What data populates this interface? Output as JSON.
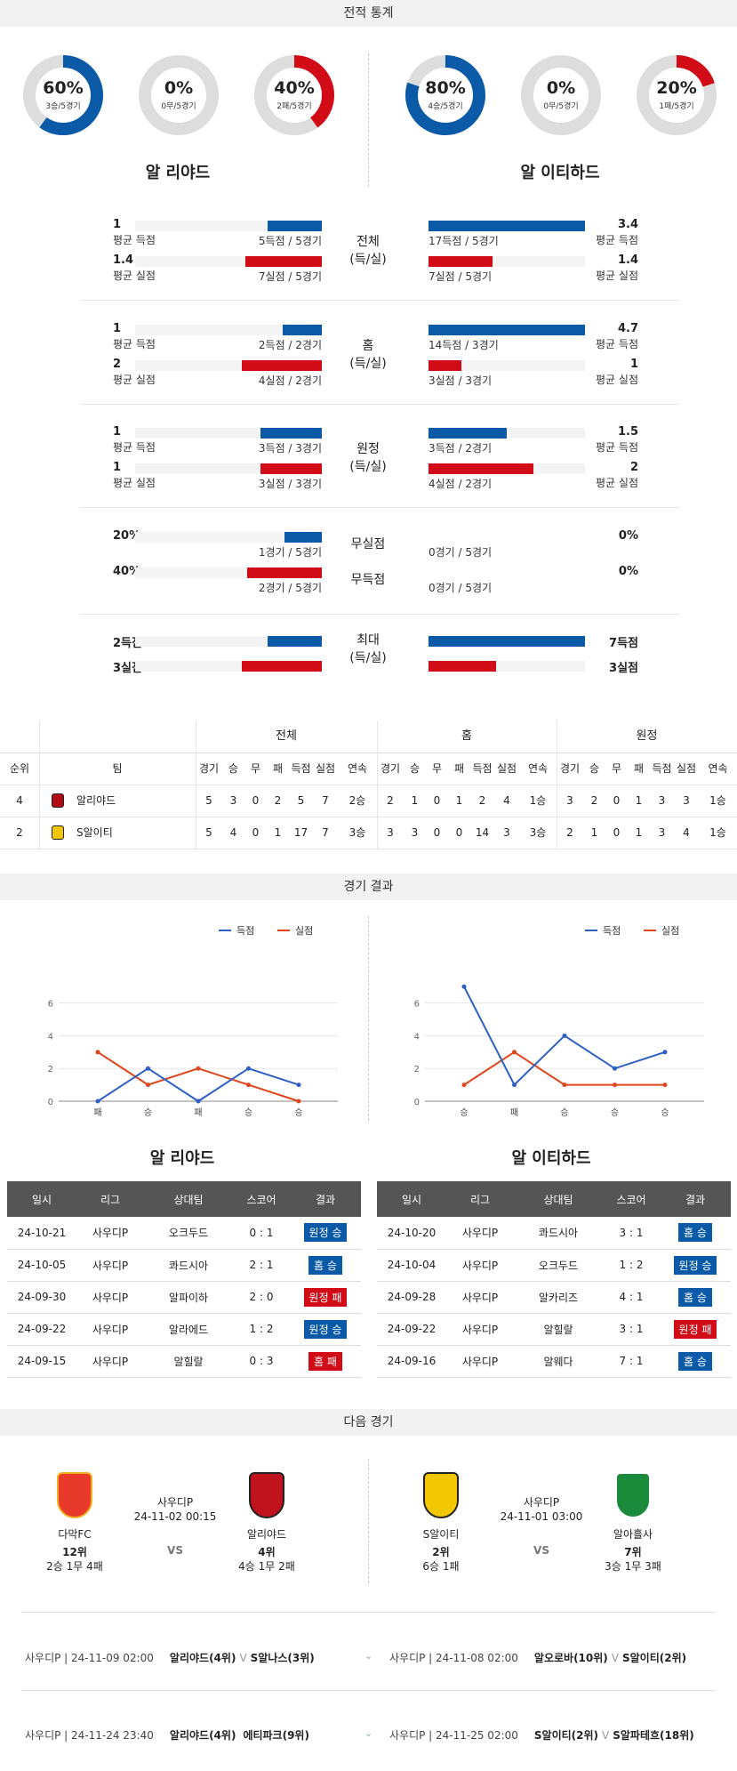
{
  "sections": {
    "stats_title": "전적 통계",
    "results_title": "경기 결과",
    "next_title": "다음 경기"
  },
  "home_team": "알 리야드",
  "away_team": "알 이티하드",
  "donuts": [
    {
      "pct": "60%",
      "sub": "3승/5경기",
      "value": 0.6,
      "color": "#0b5aa8"
    },
    {
      "pct": "0%",
      "sub": "0무/5경기",
      "value": 0,
      "color": "#999999"
    },
    {
      "pct": "40%",
      "sub": "2패/5경기",
      "value": 0.4,
      "color": "#d10c17"
    },
    {
      "pct": "80%",
      "sub": "4승/5경기",
      "value": 0.8,
      "color": "#0b5aa8"
    },
    {
      "pct": "0%",
      "sub": "0무/5경기",
      "value": 0,
      "color": "#999999"
    },
    {
      "pct": "20%",
      "sub": "1패/5경기",
      "value": 0.2,
      "color": "#d10c17"
    }
  ],
  "stat_groups": [
    {
      "cat1": "전체",
      "cat2": "(득/실)",
      "home": [
        {
          "num": "1",
          "lbl": "평균 득점",
          "detail": "5득점 / 5경기",
          "frac": 0.29
        },
        {
          "num": "1.4",
          "lbl": "평균 실점",
          "detail": "7실점 / 5경기",
          "frac": 0.41
        }
      ],
      "away": [
        {
          "num": "3.4",
          "lbl": "평균 득점",
          "detail": "17득점 / 5경기",
          "frac": 1.0
        },
        {
          "num": "1.4",
          "lbl": "평균 실점",
          "detail": "7실점 / 5경기",
          "frac": 0.41
        }
      ]
    },
    {
      "cat1": "홈",
      "cat2": "(득/실)",
      "home": [
        {
          "num": "1",
          "lbl": "평균 득점",
          "detail": "2득점 / 2경기",
          "frac": 0.21
        },
        {
          "num": "2",
          "lbl": "평균 실점",
          "detail": "4실점 / 2경기",
          "frac": 0.43
        }
      ],
      "away": [
        {
          "num": "4.7",
          "lbl": "평균 득점",
          "detail": "14득점 / 3경기",
          "frac": 1.0
        },
        {
          "num": "1",
          "lbl": "평균 실점",
          "detail": "3실점 / 3경기",
          "frac": 0.21
        }
      ]
    },
    {
      "cat1": "원정",
      "cat2": "(득/실)",
      "home": [
        {
          "num": "1",
          "lbl": "평균 득점",
          "detail": "3득점 / 3경기",
          "frac": 0.33
        },
        {
          "num": "1",
          "lbl": "평균 실점",
          "detail": "3실점 / 3경기",
          "frac": 0.33
        }
      ],
      "away": [
        {
          "num": "1.5",
          "lbl": "평균 득점",
          "detail": "3득점 / 2경기",
          "frac": 0.5
        },
        {
          "num": "2",
          "lbl": "평균 실점",
          "detail": "4실점 / 2경기",
          "frac": 0.67
        }
      ]
    }
  ],
  "clean": {
    "cat1": "무실점",
    "cat2": "무득점",
    "home": [
      {
        "num": "20%",
        "detail": "1경기 / 5경기",
        "frac": 0.2
      },
      {
        "num": "40%",
        "detail": "2경기 / 5경기",
        "frac": 0.4
      }
    ],
    "away": [
      {
        "num": "0%",
        "detail": "0경기 / 5경기",
        "frac": 0
      },
      {
        "num": "0%",
        "detail": "0경기 / 5경기",
        "frac": 0
      }
    ]
  },
  "max": {
    "cat1": "최대",
    "cat2": "(득/실)",
    "home": [
      {
        "num": "2득점",
        "frac": 0.29
      },
      {
        "num": "3실점",
        "frac": 0.43
      }
    ],
    "away": [
      {
        "num": "7득점",
        "frac": 1.0
      },
      {
        "num": "3실점",
        "frac": 0.43
      }
    ]
  },
  "standings": {
    "groups": [
      "전체",
      "홈",
      "원정"
    ],
    "headers": [
      "순위",
      "팀",
      "경기",
      "승",
      "무",
      "패",
      "득점",
      "실점",
      "연속",
      "경기",
      "승",
      "무",
      "패",
      "득점",
      "실점",
      "연속",
      "경기",
      "승",
      "무",
      "패",
      "득점",
      "실점",
      "연속"
    ],
    "rows": [
      [
        "4",
        "알리야드",
        "5",
        "3",
        "0",
        "2",
        "5",
        "7",
        "2승",
        "2",
        "1",
        "0",
        "1",
        "2",
        "4",
        "1승",
        "3",
        "2",
        "0",
        "1",
        "3",
        "3",
        "1승"
      ],
      [
        "2",
        "S알이티",
        "5",
        "4",
        "0",
        "1",
        "17",
        "7",
        "3승",
        "3",
        "3",
        "0",
        "0",
        "14",
        "3",
        "3승",
        "2",
        "1",
        "0",
        "1",
        "3",
        "4",
        "1승"
      ]
    ]
  },
  "charts": {
    "legend_scored": "득점",
    "legend_conceded": "실점",
    "home": {
      "x": [
        "패",
        "승",
        "패",
        "승",
        "승"
      ],
      "scored": [
        0,
        2,
        0,
        2,
        1
      ],
      "conceded": [
        3,
        1,
        2,
        1,
        0
      ],
      "yticks": [
        "0",
        "2",
        "4",
        "6"
      ]
    },
    "away": {
      "x": [
        "승",
        "패",
        "승",
        "승",
        "승"
      ],
      "scored": [
        7,
        1,
        4,
        2,
        3
      ],
      "conceded": [
        1,
        3,
        1,
        1,
        1
      ],
      "yticks": [
        "0",
        "2",
        "4",
        "6"
      ]
    }
  },
  "results": {
    "headers": [
      "일시",
      "리그",
      "상대팀",
      "스코어",
      "결과"
    ],
    "home": [
      [
        "24-10-21",
        "사우디P",
        "오크두드",
        "0 : 1",
        "원정 승",
        "b"
      ],
      [
        "24-10-05",
        "사우디P",
        "콰드시아",
        "2 : 1",
        "홈 승",
        "b"
      ],
      [
        "24-09-30",
        "사우디P",
        "알파이하",
        "2 : 0",
        "원정 패",
        "r"
      ],
      [
        "24-09-22",
        "사우디P",
        "알라에드",
        "1 : 2",
        "원정 승",
        "b"
      ],
      [
        "24-09-15",
        "사우디P",
        "알힐랄",
        "0 : 3",
        "홈 패",
        "r"
      ]
    ],
    "away": [
      [
        "24-10-20",
        "사우디P",
        "콰드시아",
        "3 : 1",
        "홈 승",
        "b"
      ],
      [
        "24-10-04",
        "사우디P",
        "오크두드",
        "1 : 2",
        "원정 승",
        "b"
      ],
      [
        "24-09-28",
        "사우디P",
        "알카리즈",
        "4 : 1",
        "홈 승",
        "b"
      ],
      [
        "24-09-22",
        "사우디P",
        "알힐랄",
        "3 : 1",
        "원정 패",
        "r"
      ],
      [
        "24-09-16",
        "사우디P",
        "알웨다",
        "7 : 1",
        "홈 승",
        "b"
      ]
    ]
  },
  "next": {
    "left": {
      "league": "사우디P",
      "datetime": "24-11-02 00:15",
      "vs": "VS",
      "t1": {
        "name": "다막FC",
        "rank": "12위",
        "record": "2승 1무 4패"
      },
      "t2": {
        "name": "알리야드",
        "rank": "4위",
        "record": "4승 1무 2패"
      }
    },
    "right": {
      "league": "사우디P",
      "datetime": "24-11-01 03:00",
      "vs": "VS",
      "t1": {
        "name": "S알이티",
        "rank": "2위",
        "record": "6승 1패"
      },
      "t2": {
        "name": "알아흘사",
        "rank": "7위",
        "record": "3승 1무 3패"
      }
    }
  },
  "upcoming": [
    {
      "left": "사우디P | 24-11-09 02:00",
      "mid": "알리야드(4위)",
      "vs": "V",
      "opp": "S알나스(3위)"
    },
    {
      "left": "사우디P | 24-11-08 02:00",
      "mid": "알오로바(10위)",
      "vs": "V",
      "opp": "S알이티(2위)"
    },
    {
      "left": "사우디P | 24-11-24 23:40",
      "mid": "알리야드(4위)",
      "vs": "",
      "opp": "에티파크(9위)"
    },
    {
      "left": "사우디P | 24-11-25 02:00",
      "mid": "S알이티(2위)",
      "vs": "V",
      "opp": "S알파테흐(18위)"
    }
  ]
}
